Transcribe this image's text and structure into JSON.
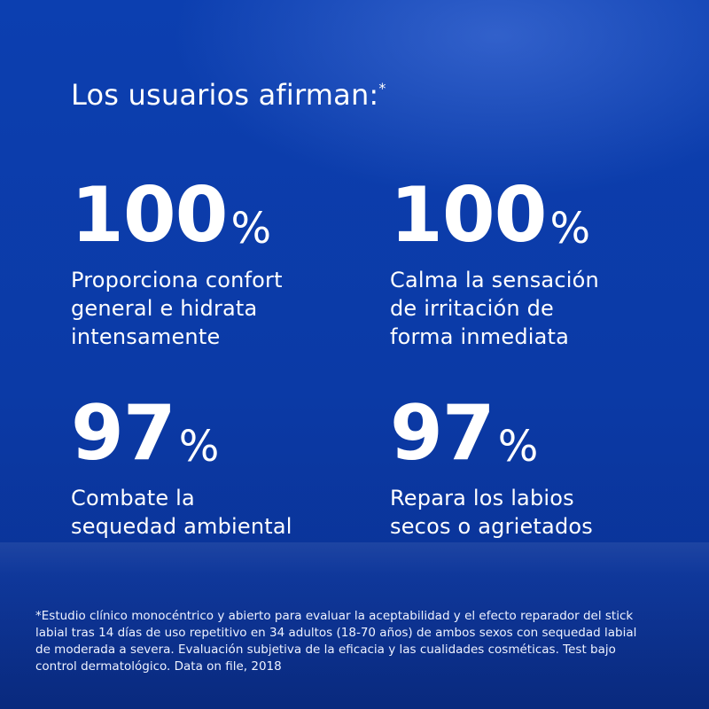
{
  "headline": {
    "text": "Los usuarios afirman:",
    "mark": "*"
  },
  "stats": [
    {
      "value": "100",
      "unit": "%",
      "description": "Proporciona confort\ngeneral e hidrata\nintensamente"
    },
    {
      "value": "100",
      "unit": "%",
      "description": "Calma la sensación\nde irritación de\nforma inmediata"
    },
    {
      "value": "97",
      "unit": "%",
      "description": "Combate la\nsequedad ambiental"
    },
    {
      "value": "97",
      "unit": "%",
      "description": "Repara los labios\nsecos o agrietados"
    }
  ],
  "footnote": "*Estudio clínico monocéntrico y abierto para evaluar la aceptabilidad y el efecto reparador del stick\nlabial tras 14 días de uso repetitivo en 34 adultos (18-70 años) de ambos sexos con sequedad labial\nde moderada a severa. Evaluación subjetiva de la eficacia y las cualidades cosméticas. Test bajo\ncontrol dermatológico. Data on file, 2018",
  "colors": {
    "background": "#0b3aa6",
    "text": "#ffffff"
  }
}
